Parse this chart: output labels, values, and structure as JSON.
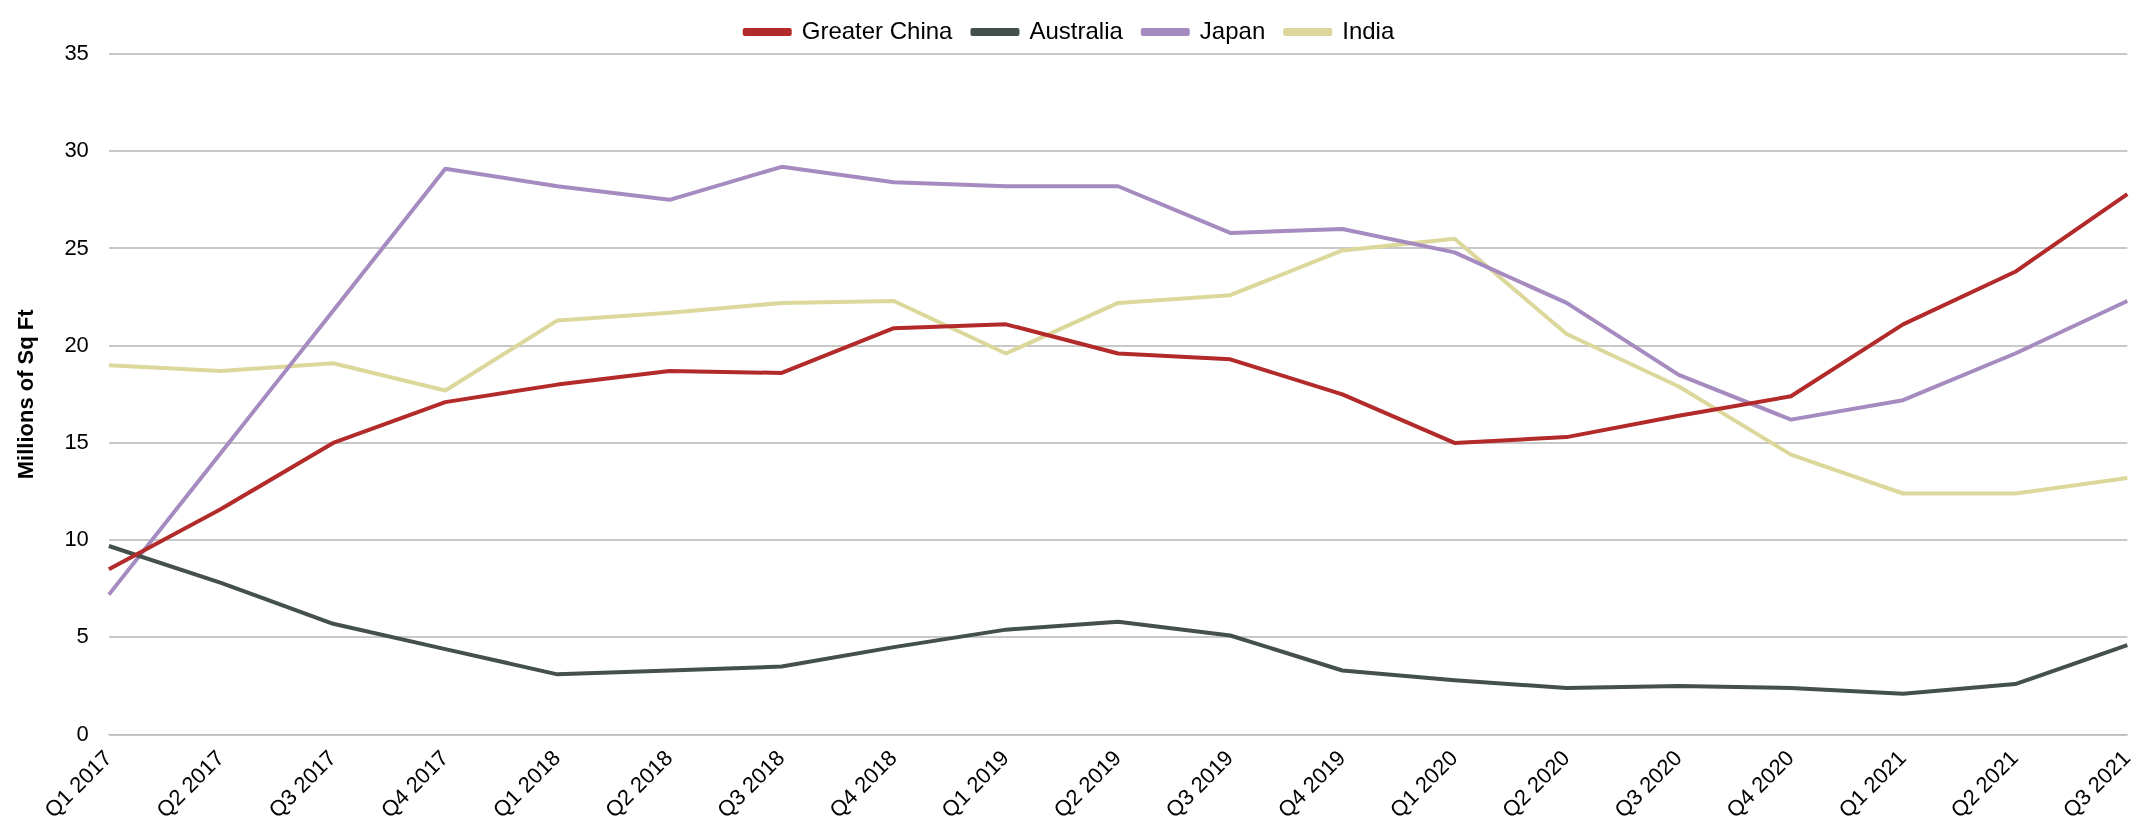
{
  "chart_data": {
    "type": "line",
    "ylabel": "Millions of Sq Ft",
    "categories": [
      "Q1 2017",
      "Q2 2017",
      "Q3 2017",
      "Q4 2017",
      "Q1 2018",
      "Q2 2018",
      "Q3 2018",
      "Q4 2018",
      "Q1 2019",
      "Q2 2019",
      "Q3 2019",
      "Q4 2019",
      "Q1 2020",
      "Q2 2020",
      "Q3 2020",
      "Q4 2020",
      "Q1 2021",
      "Q2 2021",
      "Q3 2021"
    ],
    "series": [
      {
        "name": "Greater China",
        "color": "#b22a2a",
        "values": [
          8.5,
          11.6,
          15.0,
          17.1,
          18.0,
          18.7,
          18.6,
          20.9,
          21.1,
          19.6,
          19.3,
          17.5,
          15.0,
          15.3,
          16.4,
          17.4,
          21.1,
          23.8,
          27.8
        ]
      },
      {
        "name": "Australia",
        "color": "#44504e",
        "values": [
          9.7,
          7.8,
          5.7,
          4.4,
          3.1,
          3.3,
          3.5,
          4.5,
          5.4,
          5.8,
          5.1,
          3.3,
          2.8,
          2.4,
          2.5,
          2.4,
          2.1,
          2.6,
          4.6
        ]
      },
      {
        "name": "Japan",
        "color": "#a58bc0",
        "values": [
          7.2,
          14.5,
          21.8,
          29.1,
          28.2,
          27.5,
          29.2,
          28.4,
          28.2,
          28.2,
          25.8,
          26.0,
          24.8,
          22.2,
          18.5,
          16.2,
          17.2,
          19.6,
          22.3
        ]
      },
      {
        "name": "India",
        "color": "#dcd79a",
        "values": [
          19.0,
          18.7,
          19.1,
          17.7,
          21.3,
          21.7,
          22.2,
          22.3,
          19.6,
          22.2,
          22.6,
          24.9,
          25.5,
          20.6,
          17.9,
          14.4,
          12.4,
          12.4,
          13.2
        ]
      }
    ],
    "ylim": [
      0,
      35
    ],
    "yticks": [
      0,
      5,
      10,
      15,
      20,
      25,
      30,
      35
    ],
    "grid": "y",
    "legend": "top",
    "marker": "none",
    "line_style": "solid"
  }
}
